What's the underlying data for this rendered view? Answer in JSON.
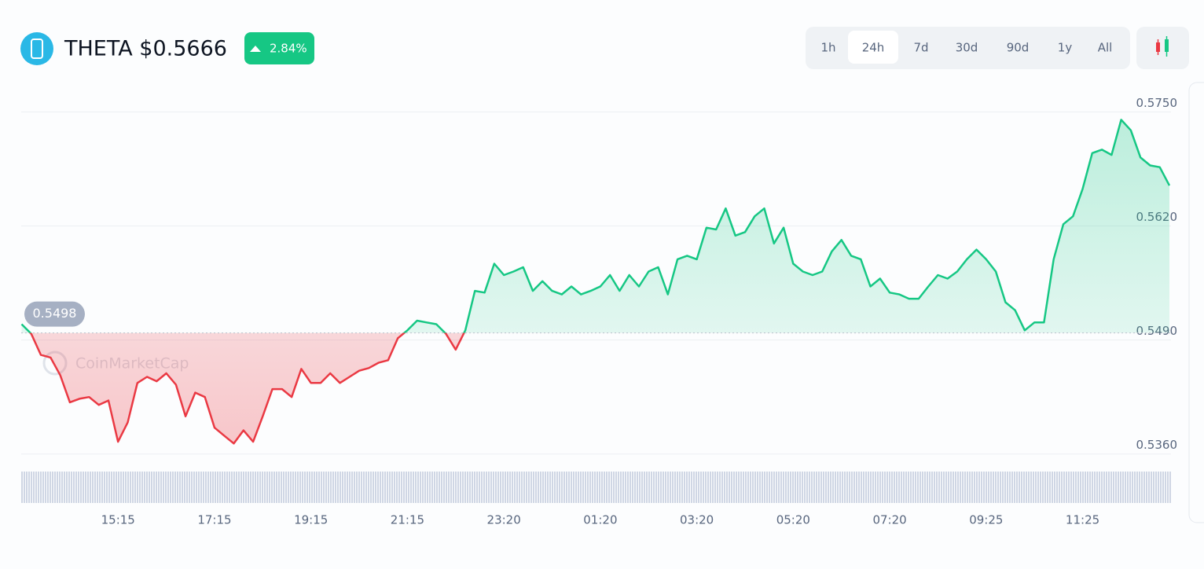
{
  "header": {
    "title": "THETA $0.5666",
    "change": "2.84%"
  },
  "timeframes": {
    "options": [
      "1h",
      "24h",
      "7d",
      "30d",
      "90d",
      "1y",
      "All"
    ],
    "active": "24h"
  },
  "chart_data": {
    "type": "line",
    "watermark": "CoinMarketCap",
    "values": [
      0.5508,
      0.5497,
      0.5473,
      0.547,
      0.545,
      0.5419,
      0.5423,
      0.5425,
      0.5416,
      0.5421,
      0.5374,
      0.5396,
      0.5441,
      0.5448,
      0.5443,
      0.5452,
      0.5439,
      0.5403,
      0.543,
      0.5425,
      0.539,
      0.5381,
      0.5372,
      0.5387,
      0.5374,
      0.5403,
      0.5434,
      0.5434,
      0.5425,
      0.5457,
      0.5441,
      0.5441,
      0.5452,
      0.5441,
      0.5448,
      0.5455,
      0.5458,
      0.5464,
      0.5467,
      0.5492,
      0.5501,
      0.5512,
      0.551,
      0.5508,
      0.5497,
      0.5479,
      0.5501,
      0.5546,
      0.5544,
      0.5577,
      0.5564,
      0.5568,
      0.5573,
      0.5546,
      0.5557,
      0.5546,
      0.5542,
      0.5551,
      0.5542,
      0.5546,
      0.5551,
      0.5564,
      0.5546,
      0.5564,
      0.5551,
      0.5568,
      0.5573,
      0.5542,
      0.5582,
      0.5586,
      0.5582,
      0.5618,
      0.5616,
      0.564,
      0.5609,
      0.5613,
      0.5631,
      0.564,
      0.56,
      0.5618,
      0.5577,
      0.5568,
      0.5564,
      0.5568,
      0.5591,
      0.5604,
      0.5586,
      0.5582,
      0.5551,
      0.556,
      0.5544,
      0.5542,
      0.5537,
      0.5537,
      0.5551,
      0.5564,
      0.556,
      0.5568,
      0.5582,
      0.5593,
      0.5582,
      0.5568,
      0.5533,
      0.5524,
      0.5501,
      0.551,
      0.551,
      0.5582,
      0.5622,
      0.5631,
      0.5662,
      0.5703,
      0.5707,
      0.5701,
      0.5741,
      0.5729,
      0.5698,
      0.5689,
      0.5687,
      0.5666
    ],
    "xlim": [
      0,
      119
    ],
    "xticks": [
      {
        "value": 10,
        "label": "15:15"
      },
      {
        "value": 20,
        "label": "17:15"
      },
      {
        "value": 30,
        "label": "19:15"
      },
      {
        "value": 40,
        "label": "21:15"
      },
      {
        "value": 50,
        "label": "23:20"
      },
      {
        "value": 60,
        "label": "01:20"
      },
      {
        "value": 70,
        "label": "03:20"
      },
      {
        "value": 80,
        "label": "05:20"
      },
      {
        "value": 90,
        "label": "07:20"
      },
      {
        "value": 100,
        "label": "09:25"
      },
      {
        "value": 110,
        "label": "11:25"
      }
    ],
    "ylim": [
      0.5349,
      0.5779
    ],
    "yticks": [
      {
        "value": 0.575,
        "label": "0.5750"
      },
      {
        "value": 0.562,
        "label": "0.5620"
      },
      {
        "value": 0.549,
        "label": "0.5490"
      },
      {
        "value": 0.536,
        "label": "0.5360"
      }
    ],
    "reference": {
      "value": 0.5498,
      "label": "0.5498"
    },
    "up_color": "#16c784",
    "down_color": "#ea3943",
    "grid": true
  }
}
